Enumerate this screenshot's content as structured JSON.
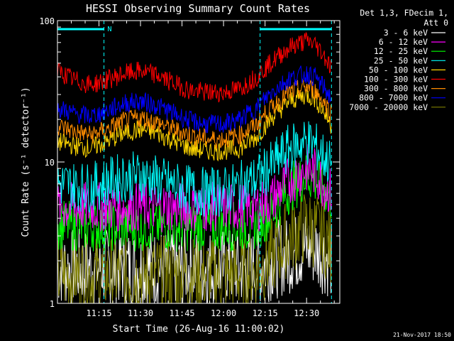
{
  "chart_data": {
    "type": "line",
    "title": "HESSI Observing Summary Count Rates",
    "xlabel": "Start Time (26-Aug-16 11:00:02)",
    "ylabel": "Count Rate (s⁻¹ detector⁻¹)",
    "ylog": true,
    "ylim": [
      1,
      100
    ],
    "xlim": [
      11.0,
      12.7
    ],
    "x_ticks": [
      "11:15",
      "11:30",
      "11:45",
      "12:00",
      "12:15",
      "12:30"
    ],
    "x_tick_values": [
      11.25,
      11.5,
      11.75,
      12.0,
      12.25,
      12.5
    ],
    "y_tick_labels": [
      "1",
      "10",
      "100"
    ],
    "y_tick_values": [
      1,
      10,
      100
    ],
    "grid": false,
    "legend_position": "right",
    "legend_header": [
      "Det 1,3, FDecim 1,",
      "Att 0"
    ],
    "night_markers": [
      {
        "x": 11.0,
        "value": 0.0
      },
      {
        "x": 11.28,
        "value": 0.0,
        "label": "N"
      },
      {
        "x": 12.22,
        "value": 0.0
      },
      {
        "x": 12.65,
        "value": 0.0
      }
    ],
    "x": [
      11.0,
      11.1,
      11.2,
      11.3,
      11.4,
      11.5,
      11.6,
      11.7,
      11.8,
      11.9,
      12.0,
      12.1,
      12.2,
      12.3,
      12.4,
      12.5,
      12.55,
      12.6,
      12.65
    ],
    "series": [
      {
        "name": "3 - 6 keV",
        "color": "#ffffff",
        "values": [
          1.8,
          1.8,
          1.8,
          1.8,
          1.8,
          1.8,
          1.8,
          1.8,
          1.8,
          1.8,
          1.8,
          1.8,
          1.8,
          2.0,
          2.2,
          2.5,
          2.4,
          2.2,
          2.0
        ]
      },
      {
        "name": "6 - 12 keV",
        "color": "#ff00ff",
        "values": [
          4.8,
          4.8,
          4.8,
          4.8,
          4.8,
          4.8,
          4.8,
          4.8,
          4.8,
          4.8,
          4.8,
          4.8,
          4.8,
          5.5,
          7.5,
          9.0,
          8.5,
          7.0,
          6.0
        ]
      },
      {
        "name": "12 - 25 keV",
        "color": "#00ff00",
        "values": [
          3.6,
          3.5,
          3.5,
          3.5,
          3.5,
          3.5,
          3.5,
          3.5,
          3.5,
          3.5,
          3.5,
          3.5,
          3.6,
          4.5,
          6.5,
          8.0,
          7.5,
          6.5,
          5.5
        ]
      },
      {
        "name": "25 - 50 keV",
        "color": "#00ffff",
        "values": [
          7.0,
          6.8,
          6.6,
          7.2,
          7.8,
          8.0,
          7.4,
          6.8,
          6.3,
          6.1,
          6.2,
          6.8,
          7.5,
          9.5,
          12.5,
          14.0,
          13.0,
          11.0,
          9.5
        ]
      },
      {
        "name": "50 - 100 keV",
        "color": "#ffd700",
        "values": [
          14.0,
          13.0,
          12.5,
          14.0,
          16.0,
          17.0,
          16.0,
          14.0,
          12.5,
          12.0,
          12.0,
          12.5,
          15.0,
          21.0,
          27.0,
          30.0,
          28.0,
          23.0,
          18.0
        ]
      },
      {
        "name": "100 - 300 keV",
        "color": "#ff0000",
        "values": [
          44.0,
          38.0,
          35.0,
          38.0,
          42.0,
          44.0,
          41.0,
          36.0,
          32.0,
          31.0,
          31.0,
          33.0,
          40.0,
          52.0,
          65.0,
          72.0,
          68.0,
          58.0,
          46.0
        ]
      },
      {
        "name": "300 - 800 keV",
        "color": "#ff8c00",
        "values": [
          18.0,
          16.5,
          15.5,
          17.0,
          19.5,
          20.5,
          19.0,
          17.0,
          15.5,
          14.5,
          14.5,
          15.5,
          18.5,
          25.0,
          31.0,
          34.0,
          32.0,
          27.0,
          22.0
        ]
      },
      {
        "name": "800 - 7000 keV",
        "color": "#0000ff",
        "values": [
          24.0,
          22.0,
          21.0,
          23.0,
          26.0,
          27.0,
          25.0,
          22.0,
          19.5,
          18.5,
          18.5,
          20.0,
          24.0,
          32.0,
          39.0,
          42.0,
          40.0,
          34.0,
          28.0
        ]
      },
      {
        "name": "7000 - 20000 keV",
        "color": "#808000",
        "values": [
          1.6,
          1.6,
          1.6,
          1.6,
          1.6,
          1.6,
          1.6,
          1.6,
          1.6,
          1.6,
          1.6,
          1.6,
          1.7,
          2.2,
          3.0,
          3.5,
          3.3,
          3.0,
          2.4
        ]
      }
    ]
  },
  "footer": {
    "timestamp": "21-Nov-2017 18:50"
  }
}
